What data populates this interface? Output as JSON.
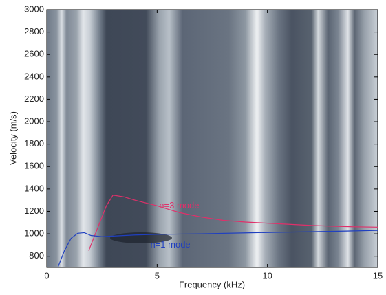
{
  "chart_data": {
    "type": "line",
    "xlabel": "Frequency (kHz)",
    "ylabel": "Velocity (m/s)",
    "xlim": [
      0,
      15
    ],
    "ylim": [
      700,
      3000
    ],
    "xticks": [
      0,
      5,
      10,
      15
    ],
    "yticks": [
      800,
      1000,
      1200,
      1400,
      1600,
      1800,
      2000,
      2200,
      2400,
      2600,
      2800,
      3000
    ],
    "series": [
      {
        "name": "n=3 mode",
        "color": "#e0306a",
        "x": [
          1.9,
          2.3,
          2.7,
          3.0,
          3.5,
          4.0,
          5.0,
          6.0,
          7.0,
          8.0,
          9.0,
          10.0,
          11.0,
          12.0,
          13.0,
          14.0,
          15.0
        ],
        "values": [
          850,
          1050,
          1250,
          1345,
          1330,
          1300,
          1250,
          1190,
          1150,
          1120,
          1105,
          1095,
          1085,
          1075,
          1068,
          1063,
          1060
        ]
      },
      {
        "name": "n=1 mode",
        "color": "#2040c0",
        "x": [
          0.5,
          0.8,
          1.1,
          1.4,
          1.7,
          2.0,
          2.5,
          3.0,
          4.0,
          5.0,
          7.0,
          9.0,
          11.0,
          13.0,
          15.0
        ],
        "values": [
          700,
          850,
          960,
          1005,
          1010,
          985,
          975,
          980,
          990,
          995,
          1000,
          1008,
          1015,
          1022,
          1030
        ]
      }
    ],
    "annotations": [
      {
        "text": "n=3 mode",
        "x": 6.0,
        "y": 1250,
        "color": "#e0306a"
      },
      {
        "text": "n=1 mode",
        "x": 5.6,
        "y": 900,
        "color": "#2040c0"
      }
    ]
  }
}
